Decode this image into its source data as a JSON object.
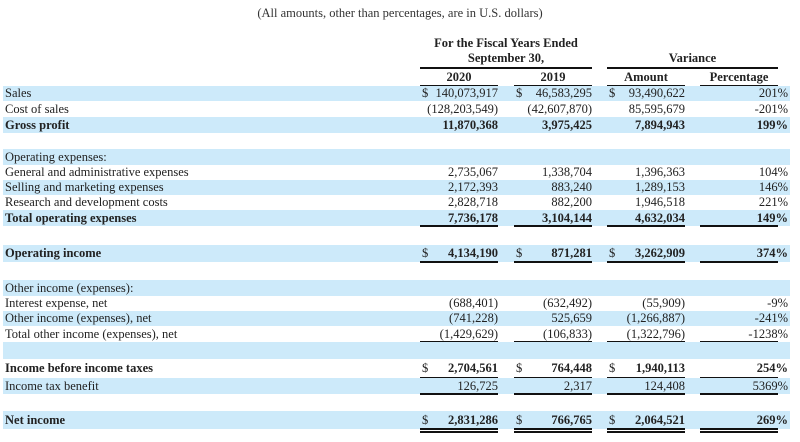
{
  "caption": "(All amounts, other than percentages, are in U.S. dollars)",
  "header": {
    "fiscal_group_line1": "For the Fiscal Years Ended",
    "fiscal_group_line2": "September 30,",
    "variance_group": "Variance",
    "col_2020": "2020",
    "col_2019": "2019",
    "col_amount": "Amount",
    "col_percentage": "Percentage"
  },
  "currency_symbol": "$",
  "colors": {
    "stripe": "#cdeafa",
    "rule": "#111111"
  },
  "rows": [
    {
      "label": "Sales",
      "y2020": "140,073,917",
      "y2019": "46,583,295",
      "amount": "93,490,622",
      "pct": "201%"
    },
    {
      "label": "Cost of sales",
      "y2020": "(128,203,549)",
      "y2019": "(42,607,870)",
      "amount": "85,595,679",
      "pct": "-201%"
    },
    {
      "label": "Gross profit",
      "y2020": "11,870,368",
      "y2019": "3,975,425",
      "amount": "7,894,943",
      "pct": "199%"
    },
    {
      "label": "",
      "y2020": "",
      "y2019": "",
      "amount": "",
      "pct": ""
    },
    {
      "label": "Operating expenses:",
      "y2020": "",
      "y2019": "",
      "amount": "",
      "pct": ""
    },
    {
      "label": "General and administrative expenses",
      "y2020": "2,735,067",
      "y2019": "1,338,704",
      "amount": "1,396,363",
      "pct": "104%"
    },
    {
      "label": "Selling and marketing expenses",
      "y2020": "2,172,393",
      "y2019": "883,240",
      "amount": "1,289,153",
      "pct": "146%"
    },
    {
      "label": "Research and development costs",
      "y2020": "2,828,718",
      "y2019": "882,200",
      "amount": "1,946,518",
      "pct": "221%"
    },
    {
      "label": "Total operating expenses",
      "y2020": "7,736,178",
      "y2019": "3,104,144",
      "amount": "4,632,034",
      "pct": "149%"
    },
    {
      "label": "",
      "y2020": "",
      "y2019": "",
      "amount": "",
      "pct": ""
    },
    {
      "label": "Operating income",
      "y2020": "4,134,190",
      "y2019": "871,281",
      "amount": "3,262,909",
      "pct": "374%"
    },
    {
      "label": "",
      "y2020": "",
      "y2019": "",
      "amount": "",
      "pct": ""
    },
    {
      "label": "Other income (expenses):",
      "y2020": "",
      "y2019": "",
      "amount": "",
      "pct": ""
    },
    {
      "label": "Interest expense, net",
      "y2020": "(688,401)",
      "y2019": "(632,492)",
      "amount": "(55,909)",
      "pct": "-9%"
    },
    {
      "label": "Other income (expenses), net",
      "y2020": "(741,228)",
      "y2019": "525,659",
      "amount": "(1,266,887)",
      "pct": "-241%"
    },
    {
      "label": "Total other income (expenses), net",
      "y2020": "(1,429,629)",
      "y2019": "(106,833)",
      "amount": "(1,322,796)",
      "pct": "-1238%"
    },
    {
      "label": "",
      "y2020": "",
      "y2019": "",
      "amount": "",
      "pct": ""
    },
    {
      "label": "Income before income taxes",
      "y2020": "2,704,561",
      "y2019": "764,448",
      "amount": "1,940,113",
      "pct": "254%"
    },
    {
      "label": "Income tax benefit",
      "y2020": "126,725",
      "y2019": "2,317",
      "amount": "124,408",
      "pct": "5369%"
    },
    {
      "label": "",
      "y2020": "",
      "y2019": "",
      "amount": "",
      "pct": ""
    },
    {
      "label": "Net income",
      "y2020": "2,831,286",
      "y2019": "766,765",
      "amount": "2,064,521",
      "pct": "269%"
    }
  ]
}
